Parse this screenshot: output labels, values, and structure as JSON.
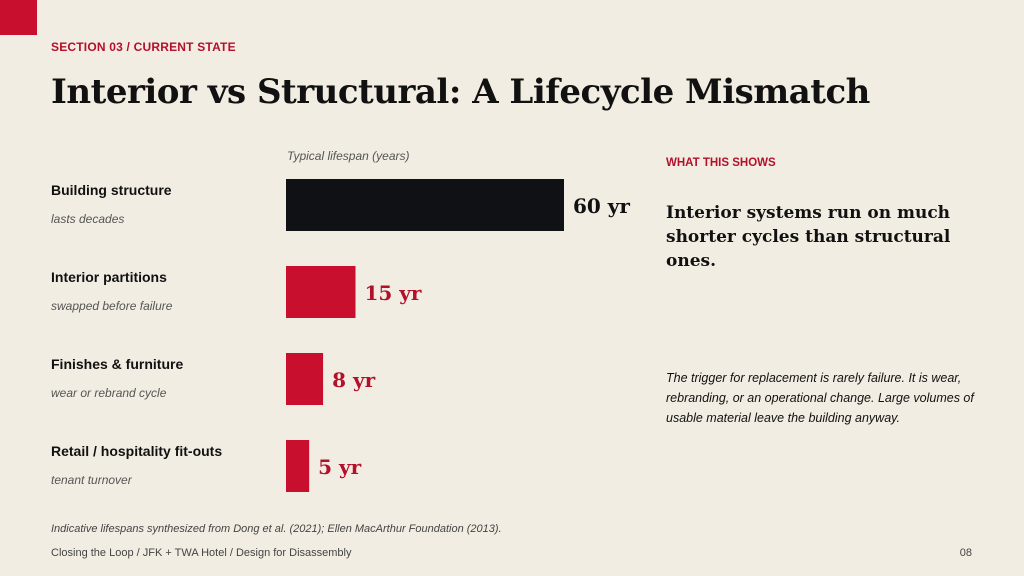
{
  "section": {
    "label": "SECTION 03  /  CURRENT STATE"
  },
  "title": "Interior vs Structural: A Lifecycle Mismatch",
  "chart_data": {
    "type": "bar",
    "orientation": "horizontal",
    "axis_caption": "Typical lifespan (years)",
    "unit": "yr",
    "categories": [
      "Building structure",
      "Interior partitions",
      "Finishes & furniture",
      "Retail / hospitality fit-outs"
    ],
    "subtitles": [
      "lasts decades",
      "swapped before failure",
      "wear or rebrand cycle",
      "tenant turnover"
    ],
    "values": [
      60,
      15,
      8,
      5
    ],
    "value_labels": [
      "60 yr",
      "15 yr",
      "8 yr",
      "5 yr"
    ],
    "xlim": [
      0,
      60
    ],
    "colors": [
      "#0f1115",
      "#c8102e",
      "#c8102e",
      "#c8102e"
    ],
    "label_colors": [
      "#111111",
      "#b3102a",
      "#b3102a",
      "#b3102a"
    ],
    "grid": false
  },
  "side_panel": {
    "heading": "WHAT THIS SHOWS",
    "lead": "Interior systems run on much shorter cycles than structural ones.",
    "body": "The trigger for replacement is rarely failure. It is wear, rebranding, or an operational change. Large volumes of usable material leave the building anyway."
  },
  "source_note": "Indicative lifespans synthesized from Dong et al. (2021); Ellen MacArthur Foundation (2013).",
  "footer": {
    "left": "Closing the Loop  /  JFK + TWA Hotel  /  Design for Disassembly",
    "page_number": "08"
  }
}
